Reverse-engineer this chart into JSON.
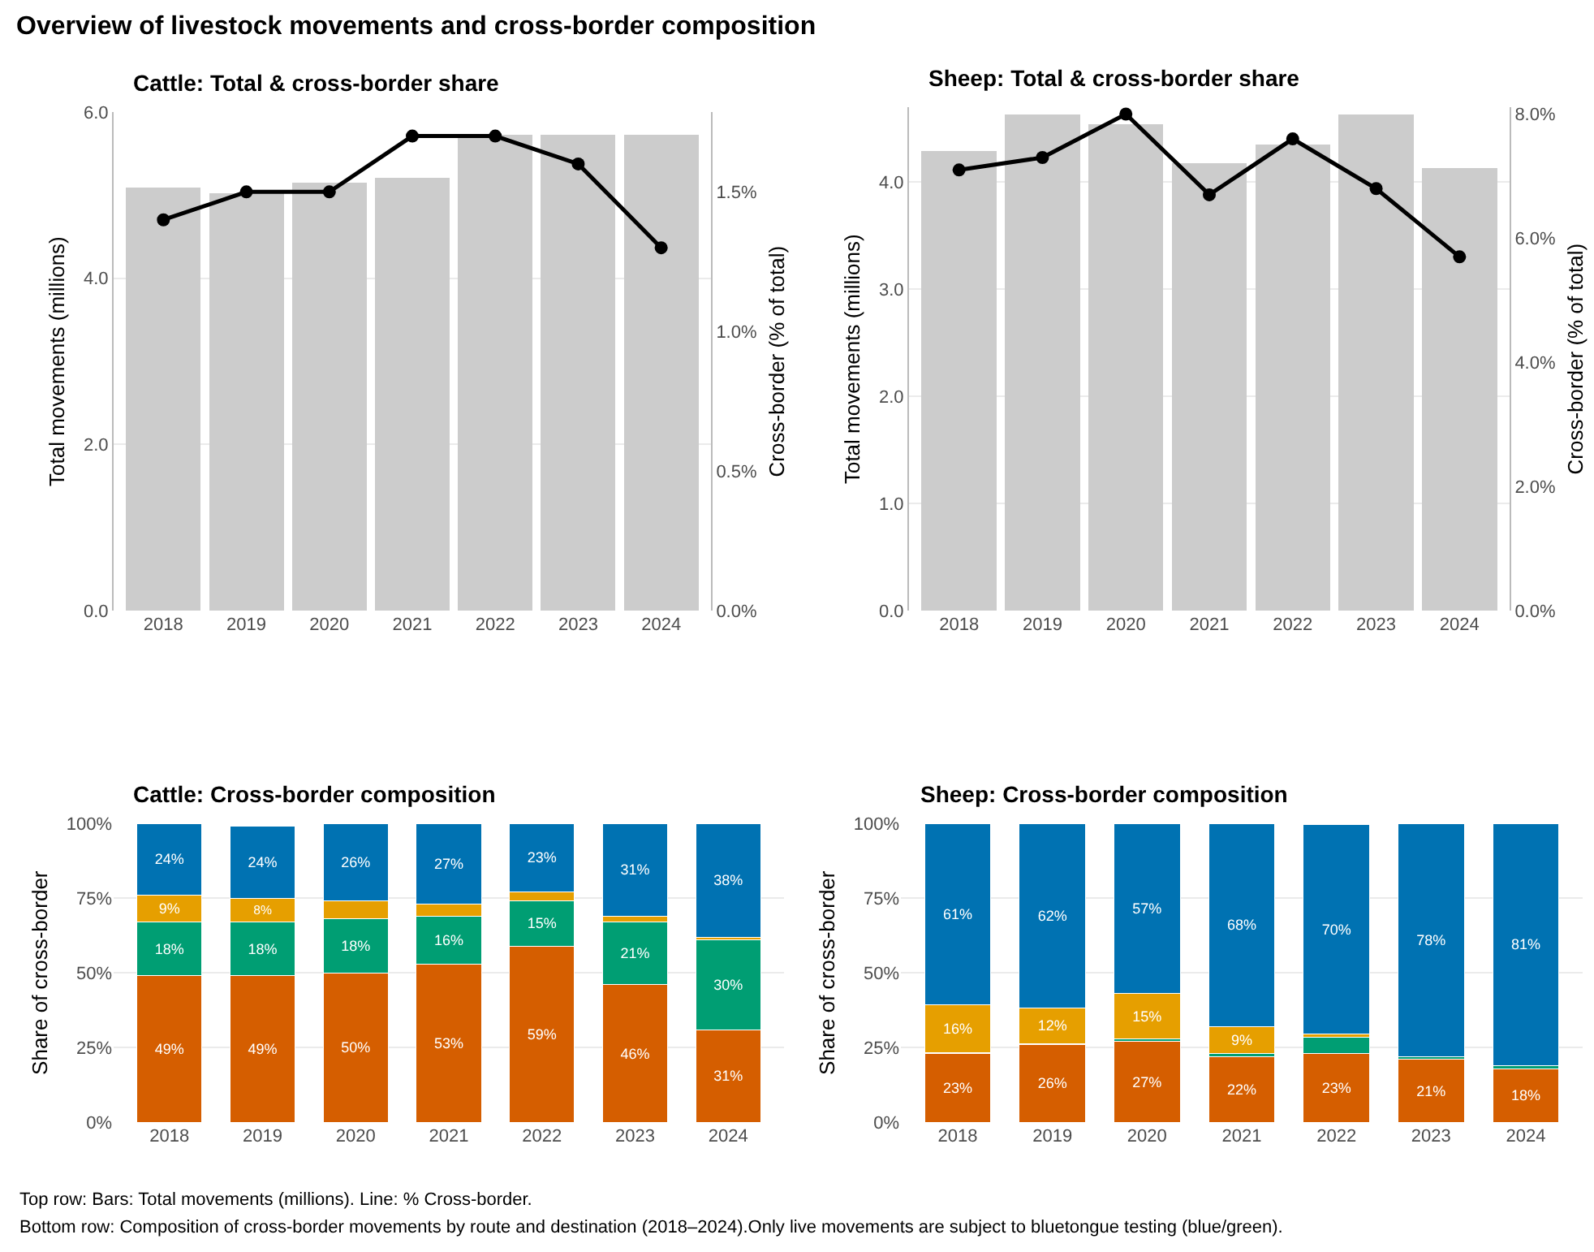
{
  "chart_data": [
    {
      "type": "bar",
      "title": "Cattle: Total & cross-border share",
      "ylabel": "Total movements (millions)",
      "y2label": "Cross-border (% of total)",
      "categories": [
        "2018",
        "2019",
        "2020",
        "2021",
        "2022",
        "2023",
        "2024"
      ],
      "series": [
        {
          "type": "bar",
          "color": "#cccccc",
          "values": [
            5.09,
            5.02,
            5.15,
            5.21,
            5.73,
            5.73,
            5.73
          ]
        },
        {
          "type": "line",
          "axis": "y2",
          "color": "#000000",
          "values": [
            1.4,
            1.5,
            1.5,
            1.7,
            1.7,
            1.6,
            1.3
          ]
        }
      ],
      "ylim": [
        0,
        6
      ],
      "yticks": [
        {
          "value": 0,
          "label": "0.0"
        },
        {
          "value": 2,
          "label": "2.0"
        },
        {
          "value": 4,
          "label": "4.0"
        },
        {
          "value": 6,
          "label": "6.0"
        }
      ],
      "y2lim": [
        0,
        1.786
      ],
      "y2ticks": [
        {
          "value": 0,
          "label": "0.0%"
        },
        {
          "value": 0.5,
          "label": "0.5%"
        },
        {
          "value": 1,
          "label": "1.0%"
        },
        {
          "value": 1.5,
          "label": "1.5%"
        }
      ],
      "grid": "y",
      "marker": "circle",
      "line_style": "solid"
    },
    {
      "type": "bar",
      "title": "Sheep: Total & cross-border share",
      "ylabel": "Total movements (millions)",
      "y2label": "Cross-border (% of total)",
      "categories": [
        "2018",
        "2019",
        "2020",
        "2021",
        "2022",
        "2023",
        "2024"
      ],
      "series": [
        {
          "type": "bar",
          "color": "#cccccc",
          "values": [
            4.29,
            4.63,
            4.54,
            4.18,
            4.35,
            4.63,
            4.13
          ]
        },
        {
          "type": "line",
          "axis": "y2",
          "color": "#000000",
          "values": [
            7.1,
            7.3,
            8.0,
            6.7,
            7.6,
            6.8,
            5.7
          ]
        }
      ],
      "ylim": [
        0,
        4.7
      ],
      "yticks": [
        {
          "value": 0,
          "label": "0.0"
        },
        {
          "value": 1,
          "label": "1.0"
        },
        {
          "value": 2,
          "label": "2.0"
        },
        {
          "value": 3,
          "label": "3.0"
        },
        {
          "value": 4,
          "label": "4.0"
        }
      ],
      "y2lim": [
        0,
        8.11
      ],
      "y2ticks": [
        {
          "value": 0,
          "label": "0.0%"
        },
        {
          "value": 2,
          "label": "2.0%"
        },
        {
          "value": 4,
          "label": "4.0%"
        },
        {
          "value": 6,
          "label": "6.0%"
        },
        {
          "value": 8,
          "label": "8.0%"
        }
      ],
      "grid": "y",
      "marker": "circle",
      "line_style": "solid"
    },
    {
      "type": "bar",
      "stacked": true,
      "title": "Cattle: Cross-border composition",
      "ylabel": "Share of cross-border",
      "categories": [
        "2018",
        "2019",
        "2020",
        "2021",
        "2022",
        "2023",
        "2024"
      ],
      "series": [
        {
          "color": "#d55e00",
          "values": [
            49,
            49,
            50,
            53,
            59,
            46,
            31
          ],
          "value_labels": [
            "49%",
            "49%",
            "50%",
            "53%",
            "59%",
            "46%",
            "31%"
          ]
        },
        {
          "color": "#009e73",
          "values": [
            18,
            18,
            18,
            16,
            15,
            21,
            30
          ],
          "value_labels": [
            "18%",
            "18%",
            "18%",
            "16%",
            "15%",
            "21%",
            "30%"
          ]
        },
        {
          "color": "#e69f00",
          "values": [
            9,
            8,
            6,
            4,
            3,
            2,
            1
          ],
          "value_labels": [
            "9%",
            "8%",
            null,
            null,
            null,
            null,
            null
          ]
        },
        {
          "color": "#0072b2",
          "values": [
            24,
            24,
            26,
            27,
            23,
            31,
            38
          ],
          "value_labels": [
            "24%",
            "24%",
            "26%",
            "27%",
            "23%",
            "31%",
            "38%"
          ]
        }
      ],
      "ylim": [
        0,
        100
      ],
      "yticks": [
        {
          "value": 0,
          "label": "0%"
        },
        {
          "value": 25,
          "label": "25%"
        },
        {
          "value": 50,
          "label": "50%"
        },
        {
          "value": 75,
          "label": "75%"
        },
        {
          "value": 100,
          "label": "100%"
        }
      ],
      "grid": "y"
    },
    {
      "type": "bar",
      "stacked": true,
      "title": "Sheep: Cross-border composition",
      "ylabel": "Share of cross-border",
      "categories": [
        "2018",
        "2019",
        "2020",
        "2021",
        "2022",
        "2023",
        "2024"
      ],
      "series": [
        {
          "color": "#d55e00",
          "values": [
            23,
            26,
            27,
            22,
            23,
            21,
            18
          ],
          "value_labels": [
            "23%",
            "26%",
            "27%",
            "22%",
            "23%",
            "21%",
            "18%"
          ]
        },
        {
          "color": "#009e73",
          "values": [
            0.4,
            0.3,
            1,
            1,
            5.5,
            1,
            1
          ],
          "value_labels": [
            null,
            null,
            null,
            null,
            null,
            null,
            null
          ]
        },
        {
          "color": "#e69f00",
          "values": [
            16,
            12,
            15,
            9,
            1,
            0,
            0
          ],
          "value_labels": [
            "16%",
            "12%",
            "15%",
            "9%",
            null,
            null,
            null
          ]
        },
        {
          "color": "#0072b2",
          "values": [
            60.6,
            61.7,
            57,
            68,
            70,
            78,
            81
          ],
          "value_labels": [
            "61%",
            "62%",
            "57%",
            "68%",
            "70%",
            "78%",
            "81%"
          ]
        }
      ],
      "ylim": [
        0,
        100
      ],
      "yticks": [
        {
          "value": 0,
          "label": "0%"
        },
        {
          "value": 25,
          "label": "25%"
        },
        {
          "value": 50,
          "label": "50%"
        },
        {
          "value": 75,
          "label": "75%"
        },
        {
          "value": 100,
          "label": "100%"
        }
      ],
      "grid": "y"
    },
    {
      "type": "other",
      "title": "Overview of livestock movements and cross-border composition",
      "annotations": [
        "Top row: Bars: Total movements (millions). Line: % Cross-border.",
        "Bottom row: Composition of cross-border movements by route and destination (2018–2024).Only live movements are subject to bluetongue testing (blue/green)."
      ]
    }
  ]
}
